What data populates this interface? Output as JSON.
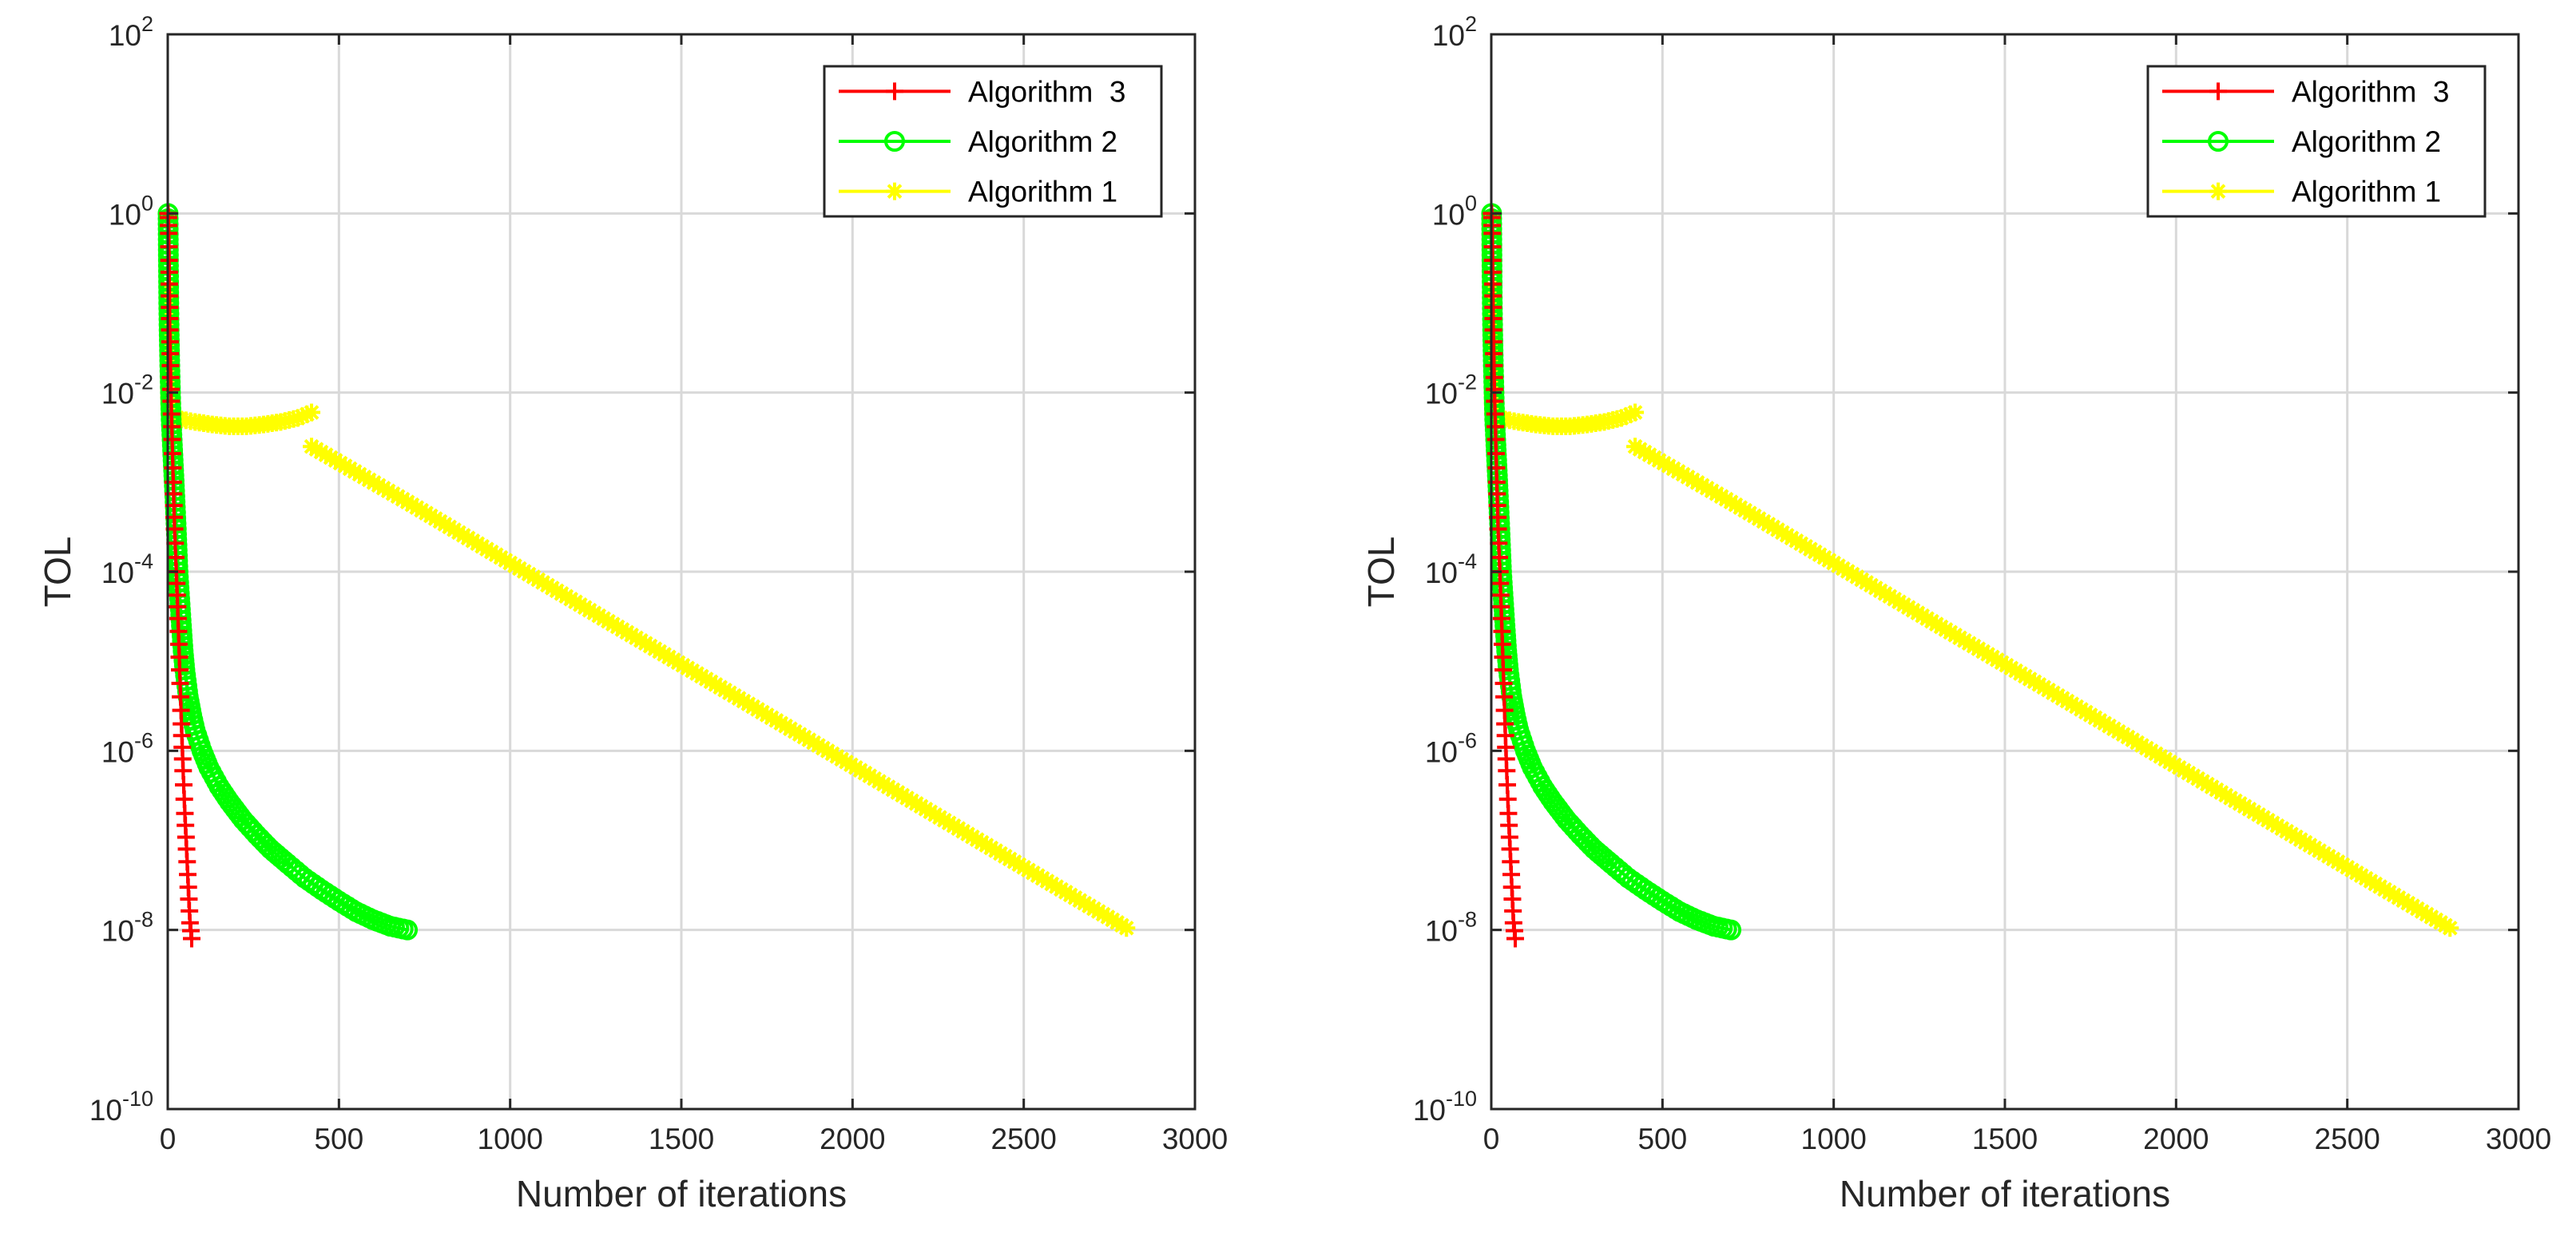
{
  "chart_data": [
    {
      "type": "line",
      "panel": "left",
      "title": "",
      "xlabel": "Number of iterations",
      "ylabel": "TOL",
      "xlim": [
        0,
        3000
      ],
      "ylim": [
        1e-10,
        100
      ],
      "yscale": "log",
      "grid": true,
      "legend_position": "top-right",
      "x_ticks": [
        0,
        500,
        1000,
        1500,
        2000,
        2500,
        3000
      ],
      "x_tick_labels": [
        "0",
        "500",
        "1000",
        "1500",
        "2000",
        "2500",
        "3000"
      ],
      "y_ticks": [
        1e-10,
        1e-08,
        1e-06,
        0.0001,
        0.01,
        1,
        100
      ],
      "y_tick_labels": [
        {
          "base": "10",
          "exp": "-10"
        },
        {
          "base": "10",
          "exp": "-8"
        },
        {
          "base": "10",
          "exp": "-6"
        },
        {
          "base": "10",
          "exp": "-4"
        },
        {
          "base": "10",
          "exp": "-2"
        },
        {
          "base": "10",
          "exp": "0"
        },
        {
          "base": "10",
          "exp": "2"
        }
      ],
      "series": [
        {
          "name": "Algorithm  3",
          "color": "#ff0000",
          "marker": "plus",
          "segments": [
            {
              "x": [
                1,
                2,
                3,
                4,
                5,
                6,
                8,
                10,
                13,
                16,
                20,
                25,
                30,
                35,
                40,
                45,
                50,
                55,
                60,
                65,
                70
              ],
              "y": [
                1.0,
                0.9,
                0.6,
                0.3,
                0.12,
                0.05,
                0.02,
                0.008,
                0.003,
                0.001,
                0.0003,
                0.0001,
                3e-05,
                8e-06,
                2e-06,
                6e-07,
                2e-07,
                8e-08,
                3e-08,
                1.2e-08,
                8e-09
              ]
            }
          ]
        },
        {
          "name": "Algorithm 2",
          "color": "#00ff00",
          "marker": "circle",
          "segments": [
            {
              "x": [
                1,
                2,
                3,
                4,
                6,
                8,
                10,
                15,
                20,
                25,
                30,
                35,
                40,
                45,
                50,
                60,
                70,
                80,
                100,
                120,
                150,
                180,
                220,
                260,
                300,
                350,
                400,
                450,
                500,
                550,
                600,
                650,
                700
              ],
              "y": [
                1.0,
                0.3,
                0.1,
                0.05,
                0.02,
                0.01,
                0.005,
                0.002,
                0.0008,
                0.0003,
                0.0001,
                5e-05,
                2.5e-05,
                1.3e-05,
                8e-06,
                4e-06,
                2.5e-06,
                1.7e-06,
                1e-06,
                6.5e-07,
                4e-07,
                2.7e-07,
                1.7e-07,
                1.15e-07,
                8e-08,
                5.5e-08,
                3.8e-08,
                2.8e-08,
                2.1e-08,
                1.6e-08,
                1.3e-08,
                1.1e-08,
                1e-08
              ]
            }
          ]
        },
        {
          "name": "Algorithm 1",
          "color": "#ffff00",
          "marker": "asterisk",
          "segments": [
            {
              "x": [
                1,
                2,
                3,
                4,
                5,
                10,
                20,
                40,
                80,
                130,
                180,
                230,
                280,
                330,
                380,
                420
              ],
              "y": [
                0.15,
                0.06,
                0.02,
                0.008,
                0.006,
                0.0055,
                0.0052,
                0.005,
                0.0047,
                0.0044,
                0.0042,
                0.0042,
                0.0044,
                0.0047,
                0.0052,
                0.006
              ]
            },
            {
              "x": [
                420,
                700,
                1000,
                1300,
                1600,
                1900,
                2200,
                2500,
                2800
              ],
              "y": [
                0.0025,
                0.0006,
                0.000125,
                2.6e-05,
                5.5e-06,
                1.15e-06,
                2.4e-07,
                5e-08,
                1.05e-08
              ]
            }
          ]
        }
      ]
    },
    {
      "type": "line",
      "panel": "right",
      "title": "",
      "xlabel": "Number of iterations",
      "ylabel": "TOL",
      "xlim": [
        0,
        3000
      ],
      "ylim": [
        1e-10,
        100
      ],
      "yscale": "log",
      "grid": true,
      "legend_position": "top-right",
      "x_ticks": [
        0,
        500,
        1000,
        1500,
        2000,
        2500,
        3000
      ],
      "x_tick_labels": [
        "0",
        "500",
        "1000",
        "1500",
        "2000",
        "2500",
        "3000"
      ],
      "y_ticks": [
        1e-10,
        1e-08,
        1e-06,
        0.0001,
        0.01,
        1,
        100
      ],
      "y_tick_labels": [
        {
          "base": "10",
          "exp": "-10"
        },
        {
          "base": "10",
          "exp": "-8"
        },
        {
          "base": "10",
          "exp": "-6"
        },
        {
          "base": "10",
          "exp": "-4"
        },
        {
          "base": "10",
          "exp": "-2"
        },
        {
          "base": "10",
          "exp": "0"
        },
        {
          "base": "10",
          "exp": "2"
        }
      ],
      "series": [
        {
          "name": "Algorithm  3",
          "color": "#ff0000",
          "marker": "plus",
          "segments": [
            {
              "x": [
                1,
                2,
                3,
                4,
                5,
                6,
                8,
                10,
                13,
                16,
                20,
                25,
                30,
                35,
                40,
                45,
                50,
                55,
                60,
                65,
                70
              ],
              "y": [
                1.0,
                0.9,
                0.6,
                0.3,
                0.12,
                0.05,
                0.02,
                0.008,
                0.003,
                0.001,
                0.0003,
                0.0001,
                3e-05,
                8e-06,
                2e-06,
                6e-07,
                2e-07,
                8e-08,
                3e-08,
                1.2e-08,
                8e-09
              ]
            }
          ]
        },
        {
          "name": "Algorithm 2",
          "color": "#00ff00",
          "marker": "circle",
          "segments": [
            {
              "x": [
                1,
                2,
                3,
                4,
                6,
                8,
                10,
                15,
                20,
                25,
                30,
                35,
                40,
                45,
                50,
                60,
                70,
                80,
                100,
                120,
                150,
                180,
                220,
                260,
                300,
                350,
                400,
                450,
                500,
                550,
                600,
                650,
                700
              ],
              "y": [
                1.0,
                0.3,
                0.1,
                0.05,
                0.02,
                0.01,
                0.005,
                0.002,
                0.0008,
                0.0003,
                0.0001,
                5e-05,
                2.5e-05,
                1.3e-05,
                8e-06,
                4e-06,
                2.5e-06,
                1.7e-06,
                1e-06,
                6.5e-07,
                4e-07,
                2.7e-07,
                1.7e-07,
                1.15e-07,
                8e-08,
                5.5e-08,
                3.8e-08,
                2.8e-08,
                2.1e-08,
                1.6e-08,
                1.3e-08,
                1.1e-08,
                1e-08
              ]
            }
          ]
        },
        {
          "name": "Algorithm 1",
          "color": "#ffff00",
          "marker": "asterisk",
          "segments": [
            {
              "x": [
                1,
                2,
                3,
                4,
                5,
                10,
                20,
                40,
                80,
                130,
                180,
                230,
                280,
                330,
                380,
                420
              ],
              "y": [
                0.15,
                0.06,
                0.02,
                0.008,
                0.006,
                0.0055,
                0.0052,
                0.005,
                0.0047,
                0.0044,
                0.0042,
                0.0042,
                0.0044,
                0.0047,
                0.0052,
                0.006
              ]
            },
            {
              "x": [
                420,
                700,
                1000,
                1300,
                1600,
                1900,
                2200,
                2500,
                2800
              ],
              "y": [
                0.0025,
                0.0006,
                0.000125,
                2.6e-05,
                5.5e-06,
                1.15e-06,
                2.4e-07,
                5e-08,
                1.05e-08
              ]
            }
          ]
        }
      ]
    }
  ]
}
